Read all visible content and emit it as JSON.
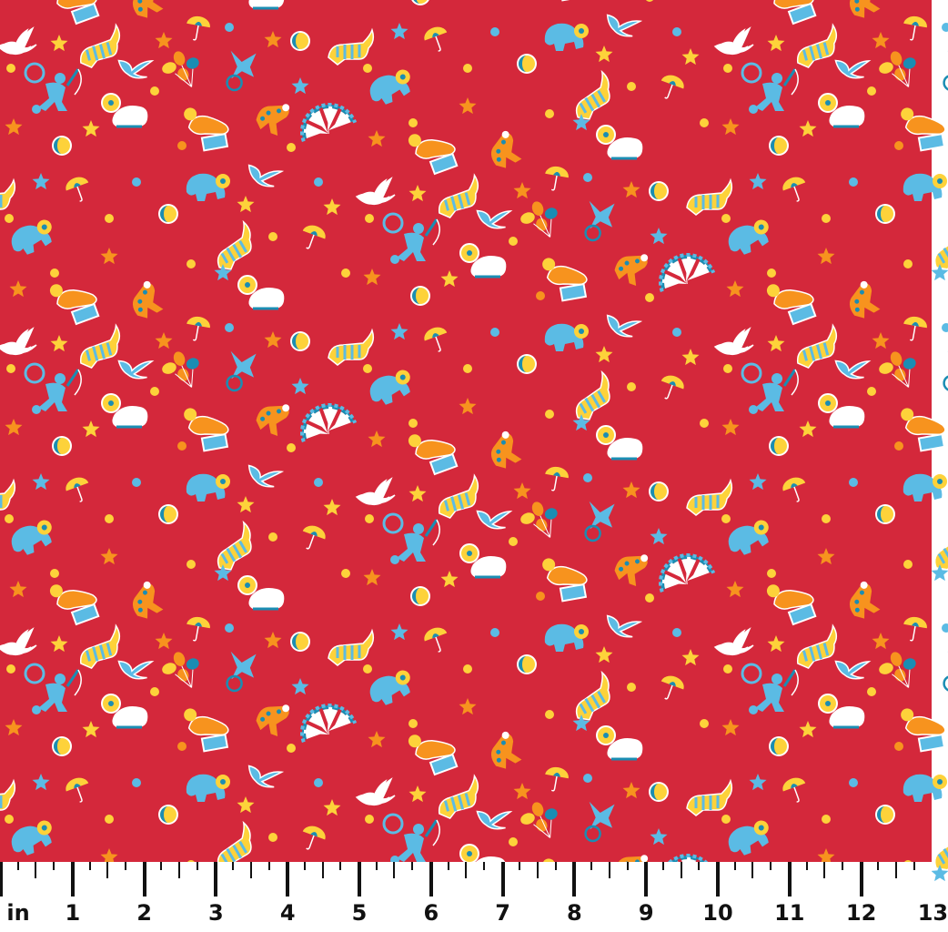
{
  "fabric": {
    "motifs": [
      "clown",
      "elephant-on-ball",
      "seal-on-drum",
      "polka-dot-dog",
      "striped-tiger",
      "balloon-bunch",
      "acrobat",
      "bird",
      "beach-ball",
      "star",
      "dot",
      "umbrella",
      "circus-fan",
      "blue-elephant"
    ],
    "colors": {
      "background": "#d4283b",
      "light_blue": "#5bbbe4",
      "teal": "#1a8db3",
      "orange": "#f7931e",
      "yellow": "#fdd23a",
      "white": "#ffffff"
    }
  },
  "ruler": {
    "unit_label": "in",
    "labels": [
      "1",
      "2",
      "3",
      "4",
      "5",
      "6",
      "7",
      "8",
      "9",
      "10",
      "11",
      "12",
      "13"
    ],
    "ticks_per_unit": 4
  }
}
